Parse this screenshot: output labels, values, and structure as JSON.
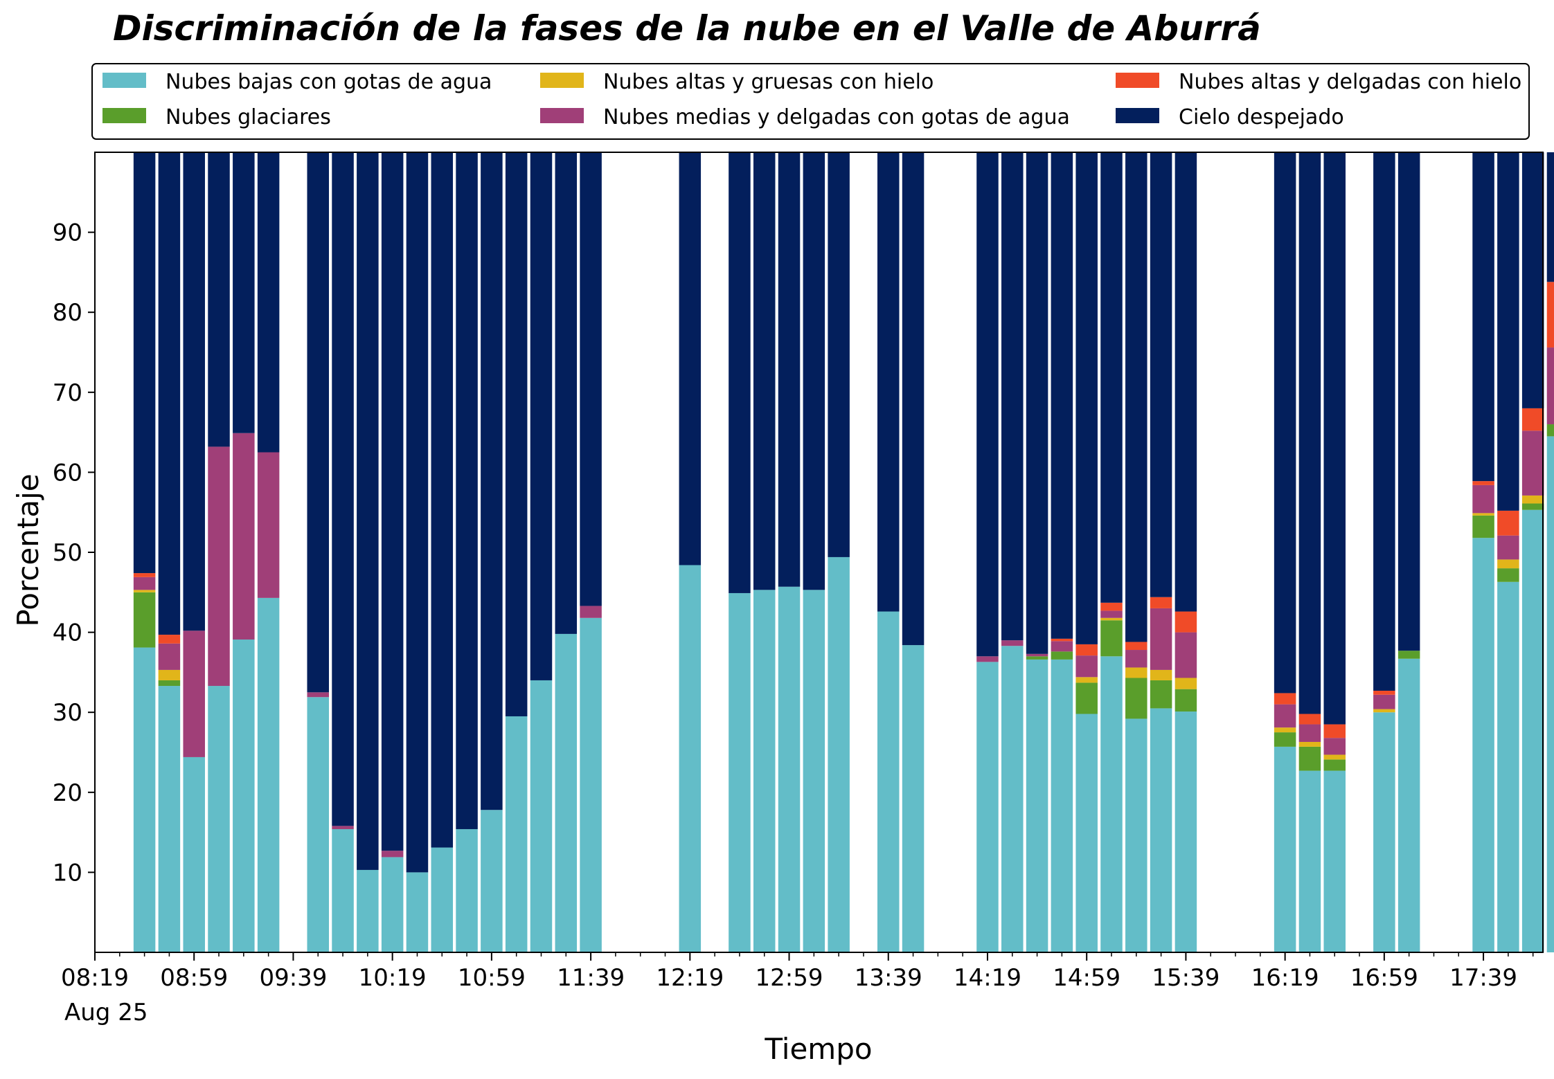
{
  "chart_data": {
    "type": "bar",
    "stacked": true,
    "title": "Discriminación de la fases de la nube en el Valle de Aburrá",
    "xlabel": "Tiempo",
    "ylabel": "Porcentaje",
    "ylim": [
      0,
      100
    ],
    "yticks": [
      10,
      20,
      30,
      40,
      50,
      60,
      70,
      80,
      90
    ],
    "xlim": [
      "08:19",
      "18:03"
    ],
    "xticks": [
      "08:19",
      "08:59",
      "09:39",
      "10:19",
      "10:59",
      "11:39",
      "12:19",
      "12:59",
      "13:39",
      "14:19",
      "14:59",
      "15:39",
      "16:19",
      "16:59",
      "17:39"
    ],
    "x_date_label": "Aug 25",
    "grid": false,
    "legend_position": "top, above plot",
    "x": [
      "08:39",
      "08:49",
      "08:59",
      "09:09",
      "09:19",
      "09:29",
      "09:49",
      "09:59",
      "10:09",
      "10:19",
      "10:29",
      "10:39",
      "10:49",
      "10:59",
      "11:09",
      "11:19",
      "11:29",
      "11:39",
      "12:19",
      "12:39",
      "12:49",
      "12:59",
      "13:09",
      "13:19",
      "13:39",
      "13:49",
      "14:19",
      "14:29",
      "14:39",
      "14:49",
      "14:59",
      "15:09",
      "15:19",
      "15:29",
      "15:39",
      "16:19",
      "16:29",
      "16:39",
      "16:59",
      "17:09",
      "17:39",
      "17:49",
      "17:59",
      "18:09"
    ],
    "series": [
      {
        "name": "Nubes bajas con gotas de agua",
        "color": "#63bdc8",
        "values": [
          38.1,
          33.3,
          24.4,
          33.3,
          39.1,
          44.3,
          31.9,
          15.4,
          10.3,
          11.9,
          10.0,
          13.1,
          15.4,
          17.8,
          29.5,
          34.0,
          39.8,
          41.8,
          48.4,
          44.9,
          45.3,
          45.7,
          45.3,
          49.4,
          42.6,
          38.4,
          36.3,
          38.3,
          36.6,
          36.6,
          29.8,
          37.0,
          29.2,
          30.5,
          30.1,
          25.7,
          22.7,
          22.7,
          30.0,
          36.7,
          51.8,
          46.3,
          55.3,
          64.5
        ]
      },
      {
        "name": "Nubes glaciares",
        "color": "#5a9e2b",
        "values": [
          6.9,
          0.7,
          0,
          0,
          0,
          0,
          0,
          0,
          0,
          0,
          0,
          0,
          0,
          0,
          0,
          0,
          0,
          0,
          0,
          0,
          0,
          0,
          0,
          0,
          0,
          0,
          0,
          0,
          0.4,
          1.0,
          3.9,
          4.5,
          5.1,
          3.5,
          2.8,
          1.8,
          3.0,
          1.4,
          0,
          1.0,
          2.8,
          1.7,
          0.8,
          1.5
        ]
      },
      {
        "name": "Nubes altas y gruesas con hielo",
        "color": "#e1b51a",
        "values": [
          0.3,
          1.3,
          0,
          0,
          0,
          0,
          0,
          0,
          0,
          0,
          0,
          0,
          0,
          0,
          0,
          0,
          0,
          0,
          0,
          0,
          0,
          0,
          0,
          0,
          0,
          0,
          0,
          0,
          0,
          0,
          0.7,
          0.3,
          1.3,
          1.3,
          1.4,
          0.6,
          0.6,
          0.6,
          0.4,
          0,
          0.3,
          1.1,
          1.0,
          0
        ]
      },
      {
        "name": "Nubes medias y delgadas con gotas de agua",
        "color": "#a03f78",
        "values": [
          1.6,
          3.3,
          15.8,
          29.9,
          25.8,
          18.2,
          0.6,
          0.4,
          0,
          0.8,
          0,
          0,
          0,
          0,
          0,
          0,
          0,
          1.5,
          0,
          0,
          0,
          0,
          0,
          0,
          0,
          0,
          0.7,
          0.7,
          0.3,
          1.3,
          2.7,
          0.9,
          2.2,
          7.7,
          5.7,
          2.9,
          2.2,
          2.1,
          1.8,
          0,
          3.5,
          3.0,
          8.1,
          9.6
        ]
      },
      {
        "name": "Nubes altas y delgadas con hielo",
        "color": "#f04b28",
        "values": [
          0.5,
          1.1,
          0,
          0,
          0,
          0,
          0,
          0,
          0,
          0,
          0,
          0,
          0,
          0,
          0,
          0,
          0,
          0,
          0,
          0,
          0,
          0,
          0,
          0,
          0,
          0,
          0,
          0,
          0,
          0.3,
          1.4,
          1.0,
          1.0,
          1.4,
          2.6,
          1.4,
          1.3,
          1.7,
          0.5,
          0,
          0.5,
          3.1,
          2.8,
          8.2
        ]
      },
      {
        "name": "Cielo despejado",
        "color": "#031f5c",
        "values": [
          52.6,
          60.3,
          59.8,
          36.8,
          35.1,
          37.5,
          67.5,
          84.2,
          89.7,
          87.3,
          90.0,
          86.9,
          84.6,
          82.2,
          70.5,
          66.0,
          60.2,
          56.7,
          51.6,
          55.1,
          54.7,
          54.3,
          54.7,
          50.6,
          57.4,
          61.6,
          63.0,
          61.0,
          62.7,
          60.8,
          61.5,
          56.3,
          61.2,
          55.6,
          57.4,
          67.6,
          70.2,
          71.5,
          67.3,
          62.3,
          41.1,
          44.8,
          32.0,
          16.2
        ]
      }
    ]
  }
}
